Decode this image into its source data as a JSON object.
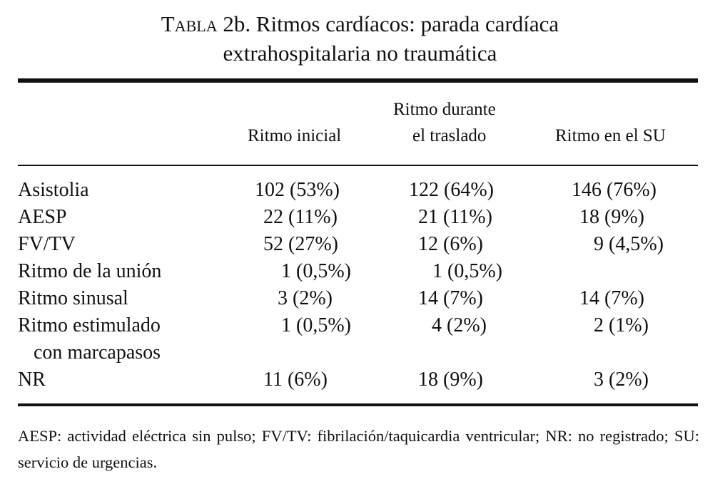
{
  "title": {
    "label": "Tabla",
    "line1_rest": "2b. Ritmos cardíacos: parada cardíaca",
    "line2": "extrahospitalaria no traumática"
  },
  "table": {
    "columns": [
      {
        "lines": [
          "Ritmo inicial"
        ]
      },
      {
        "lines": [
          "Ritmo durante",
          "el traslado"
        ]
      },
      {
        "lines": [
          "Ritmo en el SU"
        ]
      }
    ],
    "rows": [
      {
        "label": [
          "Asistolia"
        ],
        "values": [
          "102 (53%)",
          "122 (64%)",
          "146 (76%)"
        ]
      },
      {
        "label": [
          "AESP"
        ],
        "values": [
          "22 (11%)",
          "21 (11%)",
          "18 (9%)"
        ]
      },
      {
        "label": [
          "FV/TV"
        ],
        "values": [
          "52 (27%)",
          "12 (6%)",
          "9 (4,5%)"
        ]
      },
      {
        "label": [
          "Ritmo de la unión"
        ],
        "values": [
          "1 (0,5%)",
          "1 (0,5%)",
          ""
        ]
      },
      {
        "label": [
          "Ritmo sinusal"
        ],
        "values": [
          "3 (2%)",
          "14 (7%)",
          "14 (7%)"
        ]
      },
      {
        "label": [
          "Ritmo estimulado",
          "con marcapasos"
        ],
        "values": [
          "1 (0,5%)",
          "4 (2%)",
          "2 (1%)"
        ]
      },
      {
        "label": [
          "NR"
        ],
        "values": [
          "11 (6%)",
          "18 (9%)",
          "3 (2%)"
        ]
      }
    ]
  },
  "footnote": "AESP: actividad eléctrica sin pulso; FV/TV: fibrilación/taquicardia ventricular; NR: no registrado; SU: servicio de urgencias."
}
